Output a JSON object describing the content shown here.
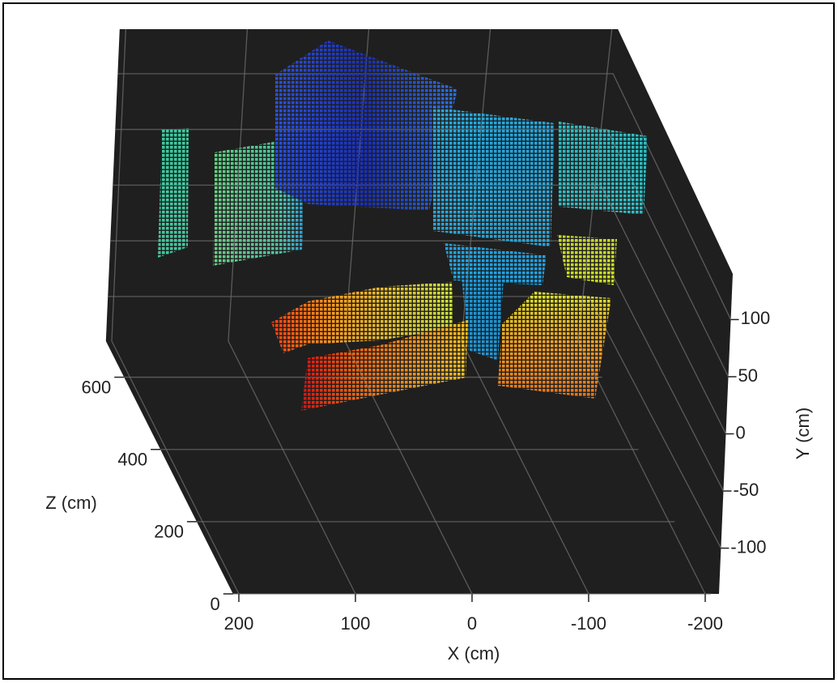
{
  "chart_data": {
    "type": "scatter3d",
    "xlabel": "X (cm)",
    "ylabel": "Y (cm)",
    "zlabel": "Z (cm)",
    "xlim": [
      -205,
      205
    ],
    "xticks": [
      200,
      100,
      0,
      -100,
      -200
    ],
    "ylim": [
      -140,
      140
    ],
    "yticks": [
      100,
      50,
      0,
      -50,
      -100
    ],
    "zlim": [
      0,
      700
    ],
    "zticks": [
      600,
      400,
      200,
      0
    ],
    "grid": true,
    "background": "#1f1f1f"
  }
}
